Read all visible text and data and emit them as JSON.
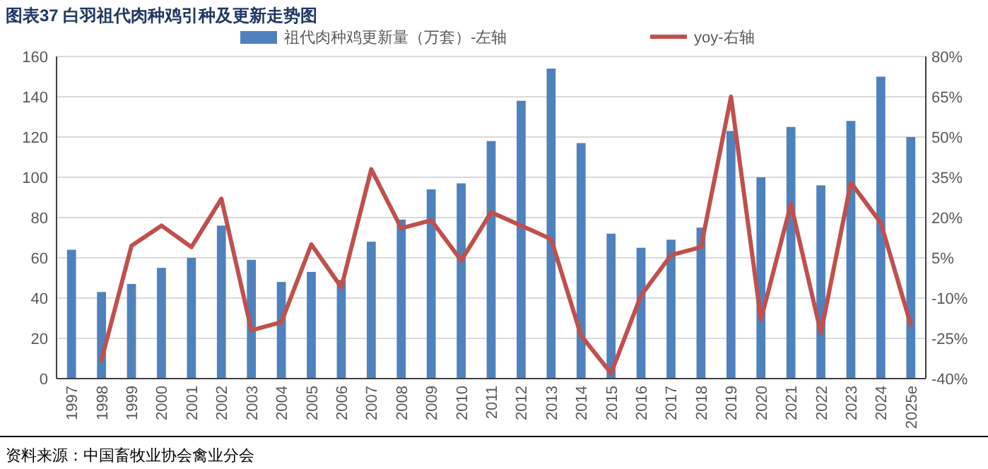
{
  "chart_data": {
    "type": "bar",
    "title": "图表37 白羽祖代肉种鸡引种及更新走势图",
    "categories": [
      "1997",
      "1998",
      "1999",
      "2000",
      "2001",
      "2002",
      "2003",
      "2004",
      "2005",
      "2006",
      "2007",
      "2008",
      "2009",
      "2010",
      "2011",
      "2012",
      "2013",
      "2014",
      "2015",
      "2016",
      "2017",
      "2018",
      "2019",
      "2020",
      "2021",
      "2022",
      "2023",
      "2024",
      "2025e"
    ],
    "series": [
      {
        "name": "祖代肉种鸡更新量（万套）-左轴",
        "color": "#4f81bd",
        "values": [
          64,
          43,
          47,
          55,
          60,
          76,
          59,
          48,
          53,
          49,
          68,
          79,
          94,
          97,
          118,
          138,
          154,
          117,
          72,
          65,
          69,
          75,
          123,
          100,
          125,
          96,
          128,
          150,
          120
        ]
      },
      {
        "name": "yoy-右轴",
        "type": "line",
        "axis": "y2",
        "color": "#c0504d",
        "values": [
          null,
          -33,
          9.5,
          17,
          9,
          27,
          -22,
          -19,
          10,
          -6,
          38,
          16,
          19,
          4,
          22,
          17,
          12,
          -24,
          -38,
          -9,
          6,
          9,
          65,
          -18,
          25,
          -23,
          33,
          18,
          -20
        ]
      }
    ],
    "ylim": [
      0,
      160
    ],
    "yticks": [
      0,
      20,
      40,
      60,
      80,
      100,
      120,
      140,
      160
    ],
    "y2lim": [
      -40,
      80
    ],
    "y2ticks": [
      {
        "value": -40,
        "label": "-40%"
      },
      {
        "value": -25,
        "label": "-25%"
      },
      {
        "value": -10,
        "label": "-10%"
      },
      {
        "value": 5,
        "label": "5%"
      },
      {
        "value": 20,
        "label": "20%"
      },
      {
        "value": 35,
        "label": "35%"
      },
      {
        "value": 50,
        "label": "50%"
      },
      {
        "value": 65,
        "label": "65%"
      },
      {
        "value": 80,
        "label": "80%"
      }
    ],
    "grid": "y",
    "legend": "top",
    "marker": "none",
    "line_style": "solid",
    "annotations": [
      "资料来源：中国畜牧业协会禽业分会"
    ]
  }
}
